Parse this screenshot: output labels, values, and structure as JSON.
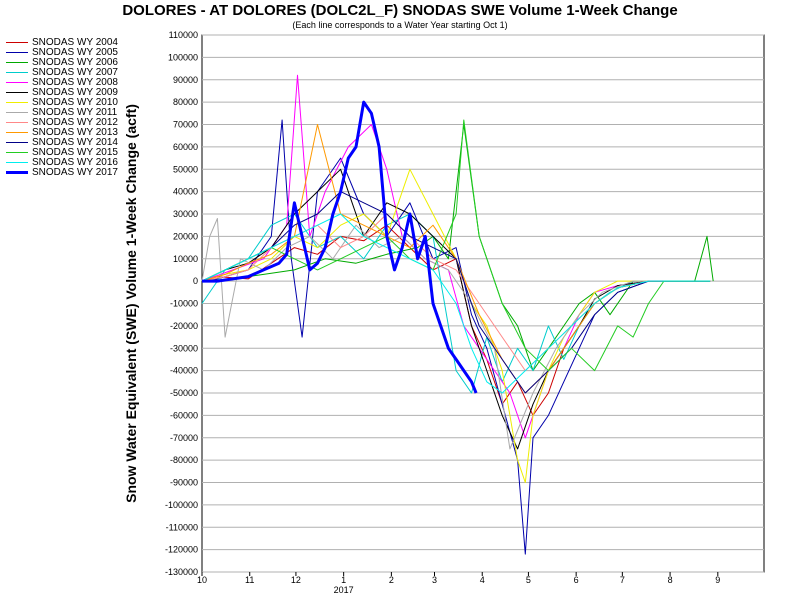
{
  "chart_data": {
    "type": "line",
    "title": "DOLORES - AT DOLORES (DOLC2L_F) SNODAS SWE Volume 1-Week Change",
    "subtitle": "(Each line corresponds to a Water Year starting Oct 1)",
    "ylabel": "Snow Water Equivalent (SWE) Volume 1-Week Change (acft)",
    "xlabel": "",
    "ylim": [
      -130000,
      110000
    ],
    "y_ticks": [
      110000,
      100000,
      90000,
      80000,
      70000,
      60000,
      50000,
      40000,
      30000,
      20000,
      10000,
      0,
      -10000,
      -20000,
      -30000,
      -40000,
      -50000,
      -60000,
      -70000,
      -80000,
      -90000,
      -100000,
      -110000,
      -120000,
      -130000
    ],
    "x_ticks": [
      "10",
      "11",
      "12",
      "1",
      "2",
      "3",
      "4",
      "5",
      "6",
      "7",
      "8",
      "9"
    ],
    "x_year_label": "2017",
    "grid": true,
    "legend_position": "left",
    "series": [
      {
        "name": "SNODAS WY 2004",
        "color": "#cc0000",
        "width": 1,
        "x": [
          0,
          10,
          30,
          45,
          60,
          75,
          90,
          105,
          120,
          135,
          150,
          165,
          175,
          185,
          195,
          205,
          215,
          225,
          235,
          245,
          255,
          270,
          290,
          310,
          330
        ],
        "values": [
          0,
          2000,
          1000,
          8000,
          15000,
          12000,
          20000,
          18000,
          25000,
          15000,
          5000,
          10000,
          -20000,
          -35000,
          -55000,
          -45000,
          -60000,
          -50000,
          -30000,
          -20000,
          -10000,
          -3000,
          0,
          0,
          0
        ]
      },
      {
        "name": "SNODAS WY 2005",
        "color": "#0000aa",
        "width": 1,
        "x": [
          0,
          10,
          30,
          45,
          52,
          58,
          65,
          75,
          90,
          105,
          120,
          135,
          150,
          165,
          175,
          185,
          195,
          205,
          210,
          215,
          225,
          235,
          245,
          255,
          270,
          290,
          310,
          330
        ],
        "values": [
          0,
          1000,
          5000,
          20000,
          72000,
          10000,
          -25000,
          40000,
          55000,
          30000,
          20000,
          35000,
          10000,
          15000,
          -15000,
          -30000,
          -55000,
          -80000,
          -122000,
          -70000,
          -60000,
          -45000,
          -30000,
          -15000,
          -5000,
          0,
          0,
          0
        ]
      },
      {
        "name": "SNODAS WY 2006",
        "color": "#00aa00",
        "width": 1,
        "x": [
          0,
          20,
          40,
          60,
          80,
          100,
          120,
          140,
          150,
          160,
          170,
          180,
          195,
          205,
          215,
          225,
          235,
          245,
          255,
          265,
          280,
          300,
          320,
          328,
          332
        ],
        "values": [
          0,
          1000,
          3000,
          5000,
          10000,
          8000,
          12000,
          15000,
          20000,
          10000,
          70000,
          20000,
          -10000,
          -20000,
          -40000,
          -30000,
          -20000,
          -10000,
          -5000,
          -15000,
          0,
          0,
          0,
          20000,
          0
        ]
      },
      {
        "name": "SNODAS WY 2007",
        "color": "#00cccc",
        "width": 1,
        "x": [
          0,
          15,
          30,
          45,
          60,
          75,
          90,
          105,
          120,
          135,
          150,
          165,
          175,
          185,
          195,
          205,
          215,
          225,
          235,
          245,
          255,
          265,
          280,
          300,
          330
        ],
        "values": [
          -10000,
          5000,
          10000,
          25000,
          30000,
          15000,
          20000,
          10000,
          25000,
          30000,
          20000,
          -40000,
          -50000,
          -25000,
          -45000,
          -30000,
          -40000,
          -20000,
          -35000,
          -20000,
          -10000,
          -5000,
          0,
          0,
          0
        ]
      },
      {
        "name": "SNODAS WY 2008",
        "color": "#ff00ff",
        "width": 1,
        "x": [
          0,
          20,
          40,
          55,
          62,
          70,
          80,
          95,
          110,
          120,
          130,
          145,
          160,
          170,
          180,
          190,
          200,
          210,
          215,
          225,
          235,
          245,
          255,
          270,
          290,
          330
        ],
        "values": [
          0,
          5000,
          10000,
          25000,
          92000,
          20000,
          40000,
          60000,
          70000,
          50000,
          20000,
          10000,
          5000,
          -20000,
          -30000,
          -40000,
          -50000,
          -70000,
          -60000,
          -40000,
          -30000,
          -15000,
          -5000,
          -2000,
          0,
          0
        ]
      },
      {
        "name": "SNODAS WY 2009",
        "color": "#000000",
        "width": 1,
        "x": [
          0,
          15,
          30,
          45,
          60,
          75,
          90,
          105,
          120,
          135,
          150,
          165,
          175,
          185,
          195,
          205,
          215,
          225,
          235,
          245,
          255,
          270,
          290,
          310,
          330
        ],
        "values": [
          0,
          5000,
          8000,
          15000,
          30000,
          40000,
          50000,
          20000,
          35000,
          30000,
          20000,
          10000,
          -20000,
          -40000,
          -60000,
          -75000,
          -55000,
          -40000,
          -30000,
          -20000,
          -8000,
          -2000,
          0,
          0,
          0
        ]
      },
      {
        "name": "SNODAS WY 2010",
        "color": "#eeee00",
        "width": 1,
        "x": [
          0,
          15,
          30,
          45,
          60,
          75,
          90,
          105,
          120,
          135,
          150,
          165,
          175,
          185,
          195,
          205,
          210,
          215,
          225,
          235,
          245,
          255,
          270,
          290,
          330
        ],
        "values": [
          0,
          3000,
          5000,
          10000,
          20000,
          15000,
          25000,
          30000,
          20000,
          50000,
          30000,
          10000,
          -10000,
          -20000,
          -40000,
          -80000,
          -90000,
          -60000,
          -40000,
          -25000,
          -15000,
          -5000,
          0,
          0,
          0
        ]
      },
      {
        "name": "SNODAS WY 2011",
        "color": "#aaaaaa",
        "width": 1,
        "x": [
          0,
          5,
          10,
          15,
          25,
          40,
          55,
          70,
          85,
          100,
          115,
          130,
          145,
          160,
          175,
          190,
          200,
          215,
          230,
          245,
          260,
          280,
          300,
          330
        ],
        "values": [
          0,
          20000,
          28000,
          -25000,
          10000,
          5000,
          15000,
          20000,
          10000,
          25000,
          15000,
          20000,
          10000,
          5000,
          -10000,
          -30000,
          -75000,
          -50000,
          -30000,
          -15000,
          -5000,
          0,
          0,
          0
        ]
      },
      {
        "name": "SNODAS WY 2012",
        "color": "#ff8888",
        "width": 1,
        "x": [
          0,
          15,
          30,
          45,
          60,
          75,
          90,
          105,
          120,
          135,
          150,
          165,
          180,
          195,
          210,
          225,
          240,
          255,
          270,
          290,
          330
        ],
        "values": [
          0,
          2000,
          5000,
          15000,
          20000,
          25000,
          15000,
          20000,
          30000,
          20000,
          10000,
          5000,
          -10000,
          -25000,
          -40000,
          -30000,
          -20000,
          -10000,
          -3000,
          0,
          0
        ]
      },
      {
        "name": "SNODAS WY 2013",
        "color": "#ff9900",
        "width": 1,
        "x": [
          0,
          15,
          30,
          45,
          60,
          75,
          90,
          105,
          120,
          135,
          150,
          165,
          180,
          195,
          210,
          225,
          240,
          255,
          270,
          290,
          330
        ],
        "values": [
          0,
          3000,
          8000,
          12000,
          20000,
          70000,
          30000,
          25000,
          20000,
          15000,
          25000,
          10000,
          -15000,
          -35000,
          -50000,
          -40000,
          -25000,
          -10000,
          -3000,
          0,
          0
        ]
      },
      {
        "name": "SNODAS WY 2014",
        "color": "#000088",
        "width": 1,
        "x": [
          0,
          15,
          30,
          45,
          60,
          75,
          90,
          105,
          120,
          135,
          150,
          165,
          180,
          195,
          210,
          225,
          240,
          255,
          270,
          290,
          330
        ],
        "values": [
          0,
          5000,
          10000,
          15000,
          25000,
          30000,
          40000,
          35000,
          30000,
          20000,
          15000,
          10000,
          -20000,
          -35000,
          -50000,
          -40000,
          -30000,
          -15000,
          -5000,
          0,
          0
        ]
      },
      {
        "name": "SNODAS WY 2015",
        "color": "#22cc22",
        "width": 1,
        "x": [
          0,
          15,
          30,
          45,
          60,
          75,
          90,
          105,
          120,
          135,
          150,
          165,
          170,
          180,
          195,
          210,
          225,
          240,
          255,
          270,
          280,
          290,
          300,
          330
        ],
        "values": [
          0,
          5000,
          10000,
          15000,
          10000,
          5000,
          10000,
          15000,
          20000,
          10000,
          5000,
          30000,
          72000,
          20000,
          -10000,
          -30000,
          -40000,
          -30000,
          -40000,
          -20000,
          -25000,
          -10000,
          0,
          0
        ]
      },
      {
        "name": "SNODAS WY 2016",
        "color": "#00eeee",
        "width": 1,
        "x": [
          0,
          15,
          30,
          45,
          60,
          75,
          90,
          105,
          120,
          135,
          150,
          165,
          175,
          185,
          195,
          210,
          225,
          240,
          255,
          270,
          290,
          330
        ],
        "values": [
          0,
          5000,
          10000,
          15000,
          20000,
          25000,
          30000,
          20000,
          15000,
          10000,
          5000,
          -10000,
          -30000,
          -45000,
          -50000,
          -40000,
          -30000,
          -20000,
          -10000,
          -3000,
          0,
          0
        ]
      },
      {
        "name": "SNODAS WY 2017",
        "color": "#0000ff",
        "width": 3,
        "x": [
          0,
          10,
          20,
          30,
          40,
          50,
          55,
          60,
          65,
          70,
          75,
          80,
          85,
          90,
          95,
          100,
          105,
          110,
          115,
          120,
          125,
          130,
          135,
          140,
          145,
          150,
          155,
          160,
          165,
          170,
          175,
          178
        ],
        "values": [
          0,
          0,
          1000,
          2000,
          5000,
          8000,
          12000,
          35000,
          20000,
          5000,
          8000,
          15000,
          30000,
          40000,
          55000,
          60000,
          80000,
          75000,
          60000,
          20000,
          5000,
          15000,
          30000,
          10000,
          20000,
          -10000,
          -20000,
          -30000,
          -35000,
          -40000,
          -45000,
          -50000
        ]
      }
    ]
  }
}
